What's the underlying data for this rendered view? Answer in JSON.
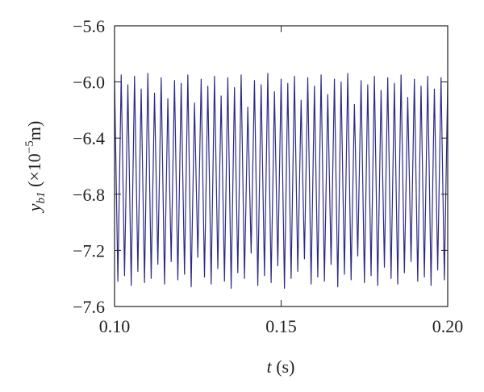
{
  "chart_data": {
    "type": "line",
    "xlabel": {
      "symbol": "t",
      "unit": " (s)"
    },
    "ylabel": {
      "symbol": "y",
      "subscript": "b1",
      "prefix": " (×10",
      "exponent": "−5",
      "unit": "m)"
    },
    "xlim": [
      0.1,
      0.2
    ],
    "ylim": [
      -7.6,
      -5.6
    ],
    "xticks": [
      {
        "value": 0.1,
        "label": "0.10"
      },
      {
        "value": 0.15,
        "label": "0.15"
      },
      {
        "value": 0.2,
        "label": "0.20"
      }
    ],
    "yticks": [
      {
        "value": -7.6,
        "label": "−7.6"
      },
      {
        "value": -7.2,
        "label": "−7.2"
      },
      {
        "value": -6.8,
        "label": "−6.8"
      },
      {
        "value": -6.4,
        "label": "−6.4"
      },
      {
        "value": -6.0,
        "label": "−6.0"
      },
      {
        "value": -5.6,
        "label": "−5.6"
      }
    ],
    "series": [
      {
        "color": "#2e2a85",
        "x": [
          0.1,
          0.101,
          0.102,
          0.103,
          0.104,
          0.105,
          0.106,
          0.107,
          0.108,
          0.109,
          0.11,
          0.111,
          0.112,
          0.113,
          0.114,
          0.115,
          0.116,
          0.117,
          0.118,
          0.119,
          0.12,
          0.121,
          0.122,
          0.123,
          0.124,
          0.125,
          0.126,
          0.127,
          0.128,
          0.129,
          0.13,
          0.131,
          0.132,
          0.133,
          0.134,
          0.135,
          0.136,
          0.137,
          0.138,
          0.139,
          0.14,
          0.141,
          0.142,
          0.143,
          0.144,
          0.145,
          0.146,
          0.147,
          0.148,
          0.149,
          0.15,
          0.151,
          0.152,
          0.153,
          0.154,
          0.155,
          0.156,
          0.157,
          0.158,
          0.159,
          0.16,
          0.161,
          0.162,
          0.163,
          0.164,
          0.165,
          0.166,
          0.167,
          0.168,
          0.169,
          0.17,
          0.171,
          0.172,
          0.173,
          0.174,
          0.175,
          0.176,
          0.177,
          0.178,
          0.179,
          0.18,
          0.181,
          0.182,
          0.183,
          0.184,
          0.185,
          0.186,
          0.187,
          0.188,
          0.189,
          0.19,
          0.191,
          0.192,
          0.193,
          0.194,
          0.195,
          0.196,
          0.197,
          0.198,
          0.199,
          0.2
        ],
        "values": [
          -5.98,
          -7.42,
          -5.95,
          -7.38,
          -6.02,
          -7.45,
          -5.96,
          -7.35,
          -6.05,
          -7.43,
          -5.94,
          -7.4,
          -6.08,
          -7.3,
          -5.97,
          -7.44,
          -6.12,
          -7.28,
          -5.99,
          -7.41,
          -6.01,
          -7.37,
          -5.95,
          -7.46,
          -6.15,
          -7.25,
          -5.98,
          -7.39,
          -6.03,
          -7.44,
          -5.96,
          -7.33,
          -6.1,
          -7.42,
          -5.97,
          -7.47,
          -6.04,
          -7.36,
          -5.95,
          -7.4,
          -6.18,
          -7.22,
          -5.99,
          -7.45,
          -6.02,
          -7.38,
          -5.94,
          -7.43,
          -6.07,
          -7.31,
          -5.98,
          -7.47,
          -6.01,
          -7.4,
          -5.96,
          -7.35,
          -6.13,
          -7.26,
          -5.97,
          -7.44,
          -6.03,
          -7.39,
          -5.95,
          -7.42,
          -6.09,
          -7.3,
          -5.98,
          -7.46,
          -6.0,
          -7.37,
          -5.94,
          -7.41,
          -6.16,
          -7.24,
          -5.99,
          -7.43,
          -6.02,
          -7.38,
          -5.96,
          -7.45,
          -6.06,
          -7.32,
          -5.97,
          -7.4,
          -6.01,
          -7.44,
          -5.95,
          -7.36,
          -6.11,
          -7.28,
          -5.98,
          -7.42,
          -6.03,
          -7.39,
          -5.96,
          -7.45,
          -6.05,
          -7.34,
          -5.97,
          -7.41,
          -6.0
        ]
      }
    ]
  }
}
